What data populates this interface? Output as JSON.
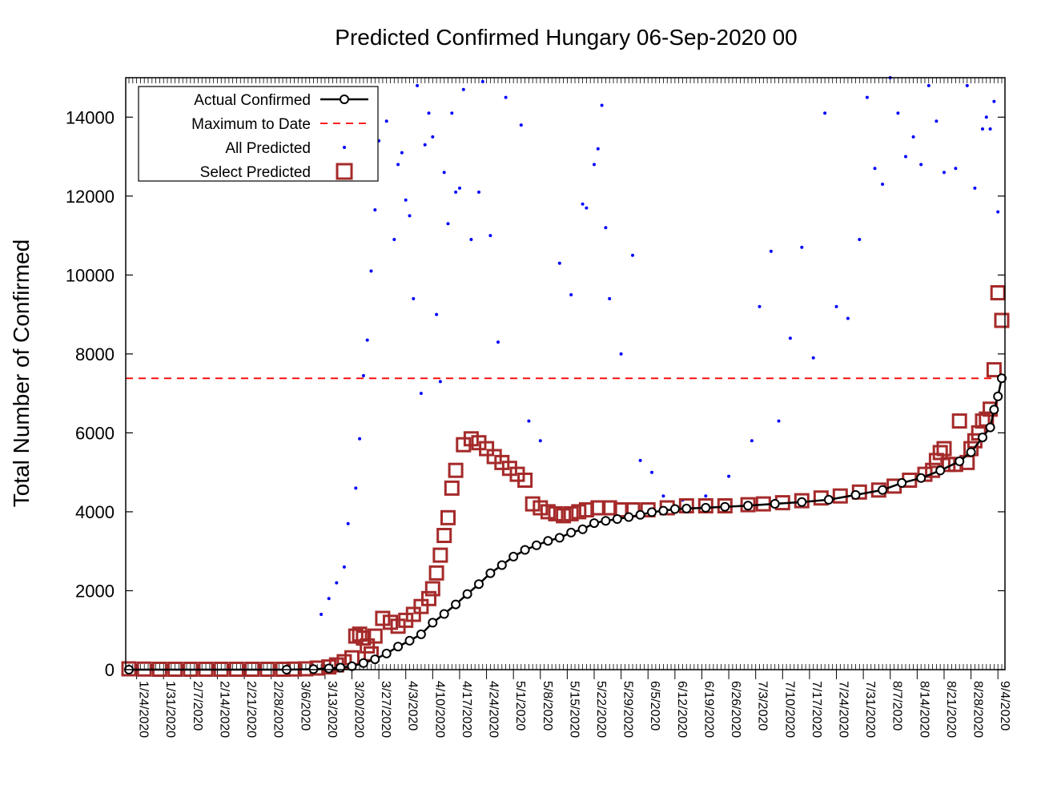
{
  "chart_data": {
    "type": "scatter",
    "title": "Predicted Confirmed Hungary 06-Sep-2020 00",
    "ylabel": "Total Number of Confirmed",
    "xlabel": "",
    "ylim": [
      0,
      15000
    ],
    "yticks": [
      0,
      2000,
      4000,
      6000,
      8000,
      10000,
      12000,
      14000
    ],
    "x_start": "1/22/2020",
    "x_end": "9/5/2020",
    "xtick_labels": [
      "1/24/2020",
      "1/31/2020",
      "2/7/2020",
      "2/14/2020",
      "2/21/2020",
      "2/28/2020",
      "3/6/2020",
      "3/13/2020",
      "3/20/2020",
      "3/27/2020",
      "4/3/2020",
      "4/10/2020",
      "4/17/2020",
      "4/24/2020",
      "5/1/2020",
      "5/8/2020",
      "5/15/2020",
      "5/22/2020",
      "5/29/2020",
      "6/5/2020",
      "6/12/2020",
      "6/19/2020",
      "6/26/2020",
      "7/3/2020",
      "7/10/2020",
      "7/17/2020",
      "7/24/2020",
      "7/31/2020",
      "8/7/2020",
      "8/14/2020",
      "8/21/2020",
      "8/28/2020",
      "9/4/2020"
    ],
    "legend": {
      "placement": "top-left",
      "entries": [
        "Actual Confirmed",
        "Maximum to Date",
        "All Predicted",
        "Select Predicted"
      ]
    },
    "colors": {
      "actual": "#000000",
      "maximum": "#ff0000",
      "all_predicted": "#0000ff",
      "select_predicted": "#a52a2a"
    },
    "maximum_to_date": 7382,
    "series": [
      {
        "name": "Actual Confirmed",
        "points": [
          [
            "1/22/2020",
            0
          ],
          [
            "3/3/2020",
            0
          ],
          [
            "3/10/2020",
            12
          ],
          [
            "3/14/2020",
            30
          ],
          [
            "3/17/2020",
            50
          ],
          [
            "3/20/2020",
            85
          ],
          [
            "3/23/2020",
            167
          ],
          [
            "3/26/2020",
            261
          ],
          [
            "3/29/2020",
            408
          ],
          [
            "4/1/2020",
            585
          ],
          [
            "4/4/2020",
            733
          ],
          [
            "4/7/2020",
            895
          ],
          [
            "4/10/2020",
            1190
          ],
          [
            "4/13/2020",
            1410
          ],
          [
            "4/16/2020",
            1652
          ],
          [
            "4/19/2020",
            1916
          ],
          [
            "4/22/2020",
            2168
          ],
          [
            "4/25/2020",
            2443
          ],
          [
            "4/28/2020",
            2649
          ],
          [
            "5/1/2020",
            2863
          ],
          [
            "5/4/2020",
            3035
          ],
          [
            "5/7/2020",
            3150
          ],
          [
            "5/10/2020",
            3263
          ],
          [
            "5/13/2020",
            3341
          ],
          [
            "5/16/2020",
            3473
          ],
          [
            "5/19/2020",
            3556
          ],
          [
            "5/22/2020",
            3713
          ],
          [
            "5/25/2020",
            3771
          ],
          [
            "5/28/2020",
            3816
          ],
          [
            "5/31/2020",
            3867
          ],
          [
            "6/3/2020",
            3921
          ],
          [
            "6/6/2020",
            3990
          ],
          [
            "6/9/2020",
            4027
          ],
          [
            "6/12/2020",
            4070
          ],
          [
            "6/15/2020",
            4081
          ],
          [
            "6/20/2020",
            4102
          ],
          [
            "6/25/2020",
            4127
          ],
          [
            "7/1/2020",
            4155
          ],
          [
            "7/8/2020",
            4202
          ],
          [
            "7/15/2020",
            4247
          ],
          [
            "7/22/2020",
            4305
          ],
          [
            "7/29/2020",
            4427
          ],
          [
            "8/5/2020",
            4553
          ],
          [
            "8/10/2020",
            4731
          ],
          [
            "8/15/2020",
            4856
          ],
          [
            "8/20/2020",
            5046
          ],
          [
            "8/25/2020",
            5280
          ],
          [
            "8/28/2020",
            5510
          ],
          [
            "8/31/2020",
            5884
          ],
          [
            "9/2/2020",
            6139
          ],
          [
            "9/3/2020",
            6589
          ],
          [
            "9/4/2020",
            6924
          ],
          [
            "9/5/2020",
            7382
          ]
        ]
      },
      {
        "name": "Select Predicted",
        "points": [
          [
            "1/22/2020",
            20
          ],
          [
            "1/26/2020",
            15
          ],
          [
            "1/30/2020",
            10
          ],
          [
            "2/3/2020",
            10
          ],
          [
            "2/7/2020",
            10
          ],
          [
            "2/11/2020",
            10
          ],
          [
            "2/15/2020",
            10
          ],
          [
            "2/19/2020",
            10
          ],
          [
            "2/23/2020",
            10
          ],
          [
            "2/27/2020",
            10
          ],
          [
            "3/2/2020",
            10
          ],
          [
            "3/5/2020",
            15
          ],
          [
            "3/8/2020",
            20
          ],
          [
            "3/11/2020",
            40
          ],
          [
            "3/14/2020",
            70
          ],
          [
            "3/16/2020",
            120
          ],
          [
            "3/18/2020",
            200
          ],
          [
            "3/20/2020",
            300
          ],
          [
            "3/21/2020",
            850
          ],
          [
            "3/22/2020",
            900
          ],
          [
            "3/23/2020",
            800
          ],
          [
            "3/24/2020",
            600
          ],
          [
            "3/25/2020",
            400
          ],
          [
            "3/26/2020",
            850
          ],
          [
            "3/28/2020",
            1300
          ],
          [
            "3/30/2020",
            1200
          ],
          [
            "4/1/2020",
            1100
          ],
          [
            "4/3/2020",
            1250
          ],
          [
            "4/5/2020",
            1400
          ],
          [
            "4/7/2020",
            1600
          ],
          [
            "4/9/2020",
            1800
          ],
          [
            "4/10/2020",
            2050
          ],
          [
            "4/11/2020",
            2450
          ],
          [
            "4/12/2020",
            2900
          ],
          [
            "4/13/2020",
            3400
          ],
          [
            "4/14/2020",
            3850
          ],
          [
            "4/15/2020",
            4600
          ],
          [
            "4/16/2020",
            5050
          ],
          [
            "4/18/2020",
            5700
          ],
          [
            "4/20/2020",
            5850
          ],
          [
            "4/22/2020",
            5750
          ],
          [
            "4/24/2020",
            5600
          ],
          [
            "4/26/2020",
            5400
          ],
          [
            "4/28/2020",
            5250
          ],
          [
            "4/30/2020",
            5100
          ],
          [
            "5/2/2020",
            4950
          ],
          [
            "5/4/2020",
            4800
          ],
          [
            "5/6/2020",
            4200
          ],
          [
            "5/8/2020",
            4100
          ],
          [
            "5/10/2020",
            4000
          ],
          [
            "5/12/2020",
            3950
          ],
          [
            "5/14/2020",
            3900
          ],
          [
            "5/16/2020",
            3950
          ],
          [
            "5/18/2020",
            4000
          ],
          [
            "5/20/2020",
            4050
          ],
          [
            "5/23/2020",
            4100
          ],
          [
            "5/26/2020",
            4100
          ],
          [
            "5/29/2020",
            4050
          ],
          [
            "6/1/2020",
            4050
          ],
          [
            "6/5/2020",
            4050
          ],
          [
            "6/10/2020",
            4100
          ],
          [
            "6/15/2020",
            4150
          ],
          [
            "6/20/2020",
            4150
          ],
          [
            "6/25/2020",
            4150
          ],
          [
            "7/1/2020",
            4180
          ],
          [
            "7/5/2020",
            4200
          ],
          [
            "7/10/2020",
            4230
          ],
          [
            "7/15/2020",
            4280
          ],
          [
            "7/20/2020",
            4350
          ],
          [
            "7/25/2020",
            4400
          ],
          [
            "7/30/2020",
            4500
          ],
          [
            "8/4/2020",
            4550
          ],
          [
            "8/8/2020",
            4650
          ],
          [
            "8/12/2020",
            4800
          ],
          [
            "8/16/2020",
            4950
          ],
          [
            "8/18/2020",
            5050
          ],
          [
            "8/19/2020",
            5300
          ],
          [
            "8/20/2020",
            5500
          ],
          [
            "8/21/2020",
            5600
          ],
          [
            "8/22/2020",
            5200
          ],
          [
            "8/24/2020",
            5200
          ],
          [
            "8/25/2020",
            6300
          ],
          [
            "8/27/2020",
            5250
          ],
          [
            "8/28/2020",
            5600
          ],
          [
            "8/29/2020",
            5800
          ],
          [
            "8/30/2020",
            6000
          ],
          [
            "8/31/2020",
            6300
          ],
          [
            "9/1/2020",
            6350
          ],
          [
            "9/2/2020",
            6600
          ],
          [
            "9/3/2020",
            7600
          ],
          [
            "9/4/2020",
            9550
          ],
          [
            "9/5/2020",
            8850
          ]
        ]
      },
      {
        "name": "All Predicted",
        "points": [
          [
            "3/12/2020",
            1400
          ],
          [
            "3/14/2020",
            1800
          ],
          [
            "3/16/2020",
            2200
          ],
          [
            "3/18/2020",
            2600
          ],
          [
            "3/19/2020",
            3700
          ],
          [
            "3/21/2020",
            4600
          ],
          [
            "3/22/2020",
            5850
          ],
          [
            "3/23/2020",
            7450
          ],
          [
            "3/24/2020",
            8350
          ],
          [
            "3/25/2020",
            10100
          ],
          [
            "3/26/2020",
            11650
          ],
          [
            "3/27/2020",
            13400
          ],
          [
            "3/29/2020",
            13900
          ],
          [
            "3/31/2020",
            10900
          ],
          [
            "4/1/2020",
            12800
          ],
          [
            "4/2/2020",
            13100
          ],
          [
            "4/3/2020",
            11900
          ],
          [
            "4/4/2020",
            11500
          ],
          [
            "4/5/2020",
            9400
          ],
          [
            "4/6/2020",
            14800
          ],
          [
            "4/7/2020",
            7000
          ],
          [
            "4/8/2020",
            13300
          ],
          [
            "4/9/2020",
            14100
          ],
          [
            "4/10/2020",
            13500
          ],
          [
            "4/11/2020",
            9000
          ],
          [
            "4/12/2020",
            7300
          ],
          [
            "4/13/2020",
            12600
          ],
          [
            "4/14/2020",
            11300
          ],
          [
            "4/15/2020",
            14100
          ],
          [
            "4/16/2020",
            12100
          ],
          [
            "4/17/2020",
            12200
          ],
          [
            "4/18/2020",
            14700
          ],
          [
            "4/20/2020",
            10900
          ],
          [
            "4/22/2020",
            12100
          ],
          [
            "4/23/2020",
            14900
          ],
          [
            "4/25/2020",
            11000
          ],
          [
            "4/27/2020",
            8300
          ],
          [
            "4/29/2020",
            14500
          ],
          [
            "5/3/2020",
            13800
          ],
          [
            "5/5/2020",
            6300
          ],
          [
            "5/8/2020",
            5800
          ],
          [
            "5/13/2020",
            10300
          ],
          [
            "5/16/2020",
            9500
          ],
          [
            "5/19/2020",
            11800
          ],
          [
            "5/20/2020",
            11700
          ],
          [
            "5/22/2020",
            12800
          ],
          [
            "5/23/2020",
            13200
          ],
          [
            "5/24/2020",
            14300
          ],
          [
            "5/25/2020",
            11200
          ],
          [
            "5/26/2020",
            9400
          ],
          [
            "5/29/2020",
            8000
          ],
          [
            "6/1/2020",
            10500
          ],
          [
            "6/3/2020",
            5300
          ],
          [
            "6/6/2020",
            5000
          ],
          [
            "6/9/2020",
            4400
          ],
          [
            "6/14/2020",
            4300
          ],
          [
            "6/20/2020",
            4400
          ],
          [
            "6/26/2020",
            4900
          ],
          [
            "7/2/2020",
            5800
          ],
          [
            "7/4/2020",
            9200
          ],
          [
            "7/7/2020",
            10600
          ],
          [
            "7/9/2020",
            6300
          ],
          [
            "7/12/2020",
            8400
          ],
          [
            "7/15/2020",
            10700
          ],
          [
            "7/18/2020",
            7900
          ],
          [
            "7/21/2020",
            14100
          ],
          [
            "7/24/2020",
            9200
          ],
          [
            "7/27/2020",
            8900
          ],
          [
            "7/30/2020",
            10900
          ],
          [
            "8/1/2020",
            14500
          ],
          [
            "8/3/2020",
            12700
          ],
          [
            "8/5/2020",
            12300
          ],
          [
            "8/7/2020",
            15000
          ],
          [
            "8/9/2020",
            14100
          ],
          [
            "8/11/2020",
            13000
          ],
          [
            "8/13/2020",
            13500
          ],
          [
            "8/15/2020",
            12800
          ],
          [
            "8/17/2020",
            14800
          ],
          [
            "8/19/2020",
            13900
          ],
          [
            "8/21/2020",
            12600
          ],
          [
            "8/24/2020",
            12700
          ],
          [
            "8/27/2020",
            14800
          ],
          [
            "8/29/2020",
            12200
          ],
          [
            "8/31/2020",
            13700
          ],
          [
            "9/1/2020",
            14000
          ],
          [
            "9/2/2020",
            13700
          ],
          [
            "9/3/2020",
            14400
          ],
          [
            "9/4/2020",
            11600
          ]
        ]
      }
    ]
  }
}
